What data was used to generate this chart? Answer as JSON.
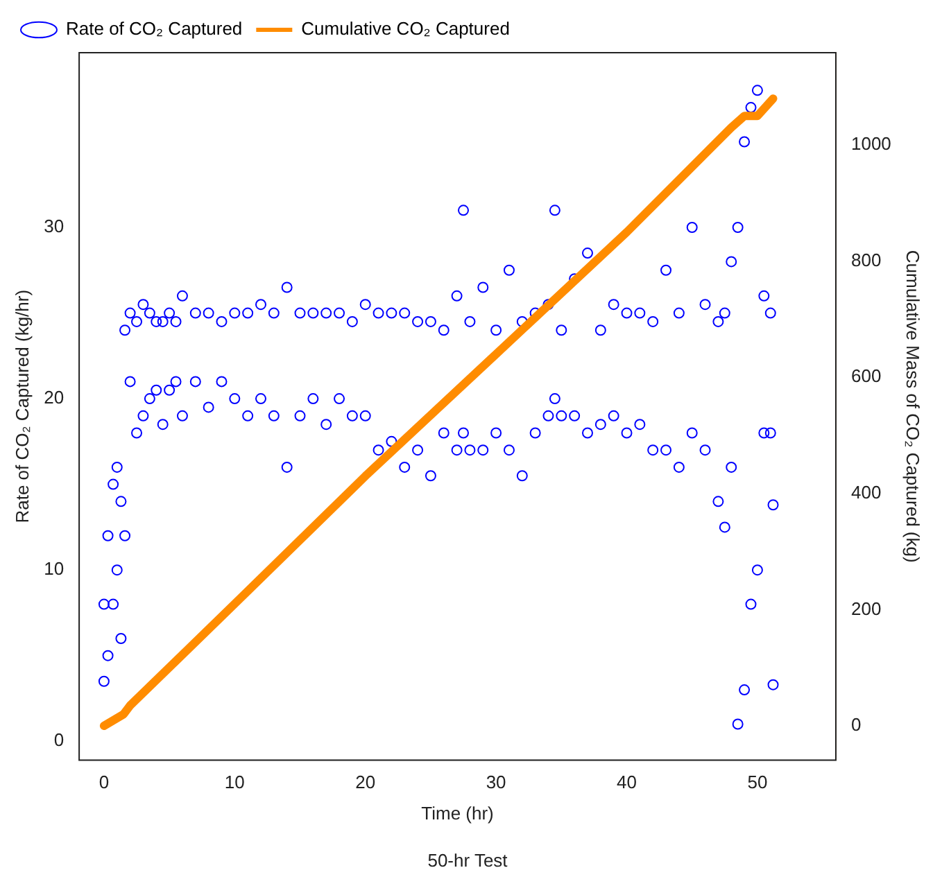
{
  "chart_data": {
    "type": "scatter",
    "title": "50-hr Test",
    "xlabel": "Time (hr)",
    "ylabel": "Rate of CO₂ Captured (kg/hr)",
    "y2label": "Cumulative Mass of CO₂ Captured (kg)",
    "series": [
      {
        "name": "Rate of CO₂ Captured",
        "color": "#0000ff",
        "marker": "circle",
        "x": [
          0,
          0,
          0.3,
          0.3,
          0.7,
          0.7,
          1,
          1,
          1.3,
          1.3,
          1.6,
          1.6,
          2,
          2,
          2.5,
          2.5,
          3,
          3,
          3.5,
          3.5,
          4,
          4,
          4.5,
          4.5,
          5,
          5,
          5.5,
          5.5,
          6,
          6,
          7,
          7,
          8,
          8,
          9,
          9,
          10,
          10,
          11,
          11,
          12,
          12,
          13,
          13,
          14,
          14,
          15,
          15,
          16,
          16,
          17,
          17,
          18,
          18,
          19,
          19,
          20,
          20,
          21,
          21,
          22,
          22,
          23,
          23,
          24,
          24,
          25,
          25,
          26,
          26,
          27,
          27,
          27.5,
          27.5,
          28,
          28,
          29,
          29,
          30,
          30,
          31,
          31,
          32,
          32,
          33,
          33,
          34,
          34,
          34.5,
          34.5,
          35,
          35,
          36,
          36,
          37,
          37,
          38,
          38,
          39,
          39,
          40,
          40,
          41,
          41,
          42,
          42,
          43,
          43,
          44,
          44,
          45,
          45,
          46,
          46,
          47,
          47,
          47.5,
          47.5,
          48,
          48,
          48.5,
          48.5,
          49,
          49,
          49.5,
          49.5,
          50,
          50,
          50.5,
          50.5,
          51,
          51,
          51.2,
          51.2
        ],
        "values": [
          3.5,
          8,
          5,
          12,
          8,
          15,
          10,
          16,
          6,
          14,
          12,
          24,
          21,
          25,
          18,
          24.5,
          19,
          25.5,
          20,
          25,
          20.5,
          24.5,
          18.5,
          24.5,
          20.5,
          25,
          21,
          24.5,
          19,
          26,
          21,
          25,
          19.5,
          25,
          21,
          24.5,
          20,
          25,
          19,
          25,
          20,
          25.5,
          19,
          25,
          16,
          26.5,
          19,
          25,
          20,
          25,
          18.5,
          25,
          20,
          25,
          19,
          24.5,
          19,
          25.5,
          17,
          25,
          17.5,
          25,
          16,
          25,
          17,
          24.5,
          15.5,
          24.5,
          18,
          24,
          17,
          26,
          18,
          31,
          17,
          24.5,
          17,
          26.5,
          18,
          24,
          17,
          27.5,
          15.5,
          24.5,
          18,
          25,
          19,
          25.5,
          20,
          31,
          19,
          24,
          19,
          27,
          18,
          28.5,
          18.5,
          24,
          19,
          25.5,
          18,
          25,
          18.5,
          25,
          17,
          24.5,
          17,
          27.5,
          16,
          25,
          18,
          30,
          17,
          25.5,
          14,
          24.5,
          12.5,
          25,
          16,
          28,
          1,
          30,
          3,
          35,
          8,
          37,
          10,
          38,
          18,
          26,
          18,
          25,
          3.3,
          13.8
        ]
      },
      {
        "name": "Cumulative CO₂ Captured",
        "type": "line",
        "axis": "y2",
        "color": "#ff8c00",
        "marker": "none",
        "x": [
          0,
          1.5,
          2,
          10,
          20,
          30,
          40,
          48,
          49,
          50,
          51.2
        ],
        "values": [
          0,
          20,
          35,
          210,
          430,
          640,
          850,
          1030,
          1050,
          1050,
          1080
        ]
      }
    ],
    "xlim": [
      -1.9,
      56
    ],
    "xticks": [
      0,
      10,
      20,
      30,
      40,
      50
    ],
    "ylim": [
      -1.1,
      40.2
    ],
    "yticks": [
      0,
      10,
      20,
      30
    ],
    "y2lim": [
      -59,
      1159
    ],
    "y2ticks": [
      0,
      200,
      400,
      600,
      800,
      1000
    ],
    "grid": false,
    "legend": "top left"
  }
}
